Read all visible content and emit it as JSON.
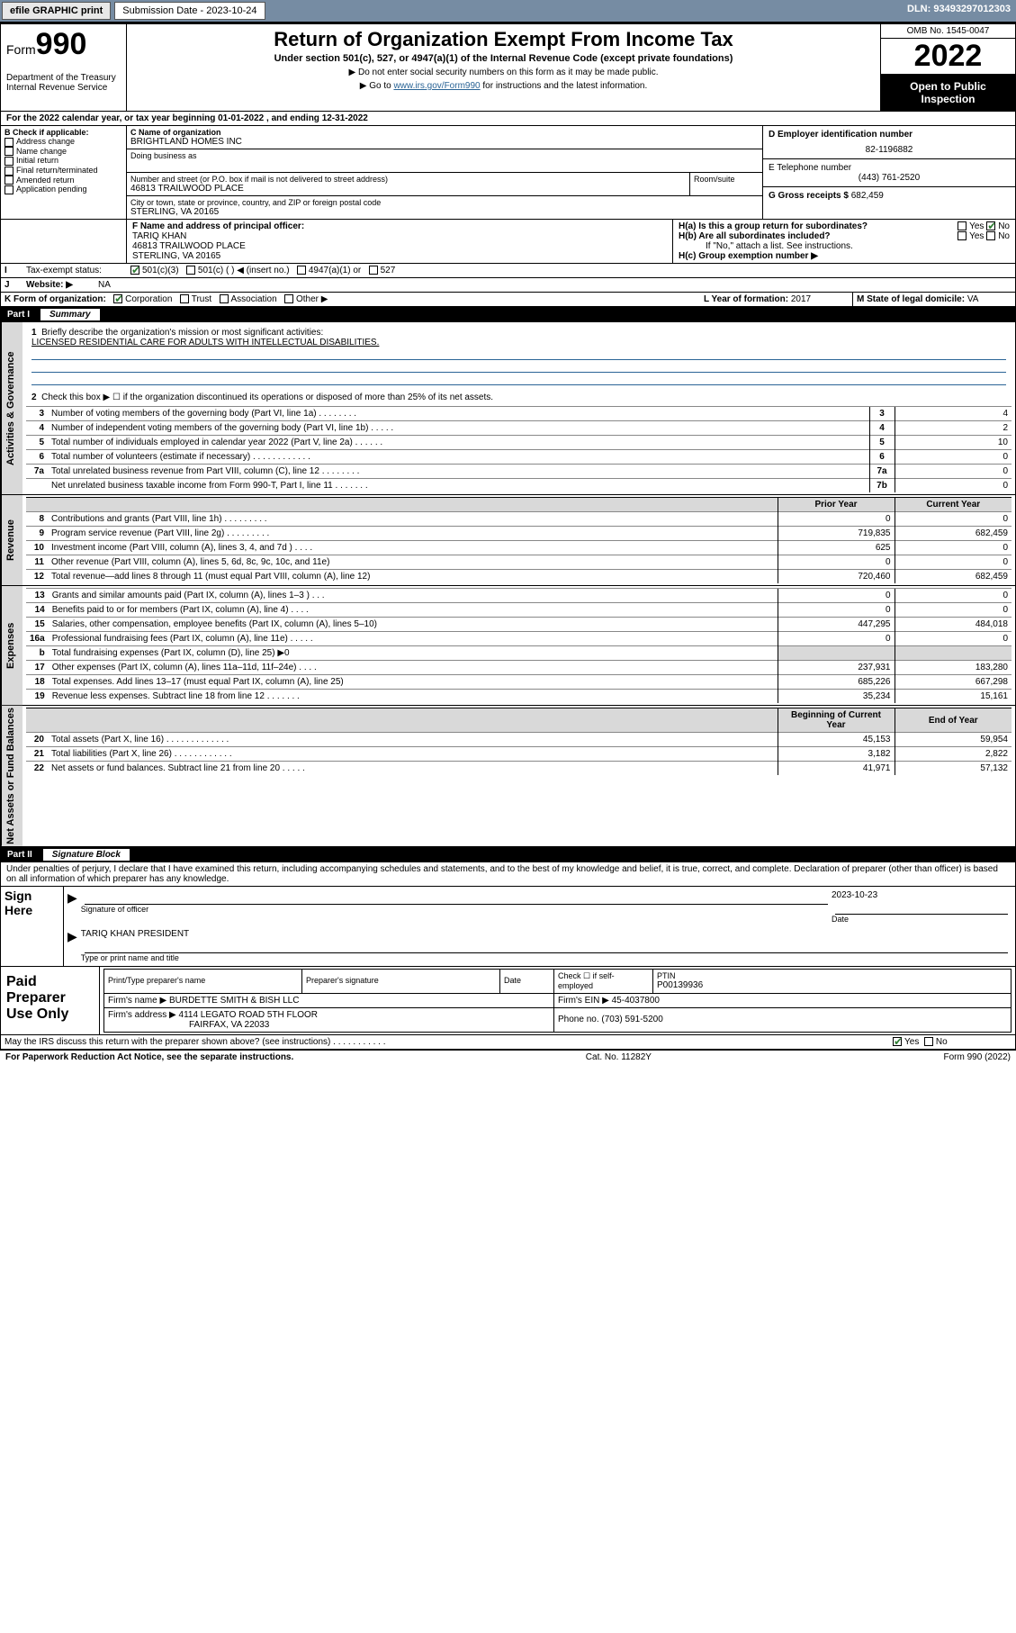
{
  "topbar": {
    "efile": "efile GRAPHIC print",
    "submission_label": "Submission Date - 2023-10-24",
    "dln": "DLN: 93493297012303"
  },
  "header": {
    "form_word": "Form",
    "form_num": "990",
    "title": "Return of Organization Exempt From Income Tax",
    "subtitle": "Under section 501(c), 527, or 4947(a)(1) of the Internal Revenue Code (except private foundations)",
    "note1": "▶ Do not enter social security numbers on this form as it may be made public.",
    "note2_pre": "▶ Go to ",
    "note2_link": "www.irs.gov/Form990",
    "note2_post": " for instructions and the latest information.",
    "dept": "Department of the Treasury\nInternal Revenue Service",
    "omb": "OMB No. 1545-0047",
    "year": "2022",
    "open": "Open to Public Inspection"
  },
  "period": "For the 2022 calendar year, or tax year beginning 01-01-2022   , and ending 12-31-2022",
  "B": {
    "title": "B Check if applicable:",
    "items": [
      "Address change",
      "Name change",
      "Initial return",
      "Final return/terminated",
      "Amended return",
      "Application pending"
    ]
  },
  "C": {
    "name_lbl": "C Name of organization",
    "name": "BRIGHTLAND HOMES INC",
    "dba_lbl": "Doing business as",
    "addr_lbl": "Number and street (or P.O. box if mail is not delivered to street address)",
    "room_lbl": "Room/suite",
    "addr": "46813 TRAILWOOD PLACE",
    "city_lbl": "City or town, state or province, country, and ZIP or foreign postal code",
    "city": "STERLING, VA  20165"
  },
  "D": {
    "lbl": "D Employer identification number",
    "val": "82-1196882"
  },
  "E": {
    "lbl": "E Telephone number",
    "val": "(443) 761-2520"
  },
  "G": {
    "lbl": "G Gross receipts $",
    "val": "682,459"
  },
  "F": {
    "lbl": "F  Name and address of principal officer:",
    "name": "TARIQ KHAN",
    "addr1": "46813 TRAILWOOD PLACE",
    "addr2": "STERLING, VA  20165"
  },
  "H": {
    "a": "H(a)  Is this a group return for subordinates?",
    "b": "H(b)  Are all subordinates included?",
    "note": "If \"No,\" attach a list. See instructions.",
    "c": "H(c)  Group exemption number ▶",
    "yes": "Yes",
    "no": "No"
  },
  "I": {
    "lbl": "Tax-exempt status:",
    "opts": [
      "501(c)(3)",
      "501(c) (  ) ◀ (insert no.)",
      "4947(a)(1) or",
      "527"
    ]
  },
  "J": {
    "lbl": "Website: ▶",
    "val": "NA"
  },
  "K": {
    "lbl": "K Form of organization:",
    "opts": [
      "Corporation",
      "Trust",
      "Association",
      "Other ▶"
    ]
  },
  "L": {
    "lbl": "L Year of formation: ",
    "val": "2017"
  },
  "M": {
    "lbl": "M State of legal domicile: ",
    "val": "VA"
  },
  "partI": {
    "name": "Part I",
    "title": "Summary"
  },
  "summary": {
    "l1_lbl": "Briefly describe the organization's mission or most significant activities:",
    "l1_val": "LICENSED RESIDENTIAL CARE FOR ADULTS WITH INTELLECTUAL DISABILITIES.",
    "l2": "Check this box ▶ ☐  if the organization discontinued its operations or disposed of more than 25% of its net assets.",
    "prior_hdr": "Prior Year",
    "curr_hdr": "Current Year",
    "begin_hdr": "Beginning of Current Year",
    "end_hdr": "End of Year",
    "rows_ag": [
      {
        "n": "3",
        "t": "Number of voting members of the governing body (Part VI, line 1a)  .   .   .   .   .   .   .   .",
        "box": "3",
        "v1": "",
        "v2": "4"
      },
      {
        "n": "4",
        "t": "Number of independent voting members of the governing body (Part VI, line 1b)  .   .   .   .   .",
        "box": "4",
        "v1": "",
        "v2": "2"
      },
      {
        "n": "5",
        "t": "Total number of individuals employed in calendar year 2022 (Part V, line 2a)  .   .   .   .   .   .",
        "box": "5",
        "v1": "",
        "v2": "10"
      },
      {
        "n": "6",
        "t": "Total number of volunteers (estimate if necessary)  .   .   .   .   .   .   .   .   .   .   .   .",
        "box": "6",
        "v1": "",
        "v2": "0"
      },
      {
        "n": "7a",
        "t": "Total unrelated business revenue from Part VIII, column (C), line 12  .   .   .   .   .   .   .   .",
        "box": "7a",
        "v1": "",
        "v2": "0"
      },
      {
        "n": "",
        "t": "Net unrelated business taxable income from Form 990-T, Part I, line 11  .   .   .   .   .   .   .",
        "box": "7b",
        "v1": "",
        "v2": "0"
      }
    ],
    "rows_rev": [
      {
        "n": "8",
        "t": "Contributions and grants (Part VIII, line 1h)   .   .   .   .   .   .   .   .   .",
        "v1": "0",
        "v2": "0"
      },
      {
        "n": "9",
        "t": "Program service revenue (Part VIII, line 2g)   .   .   .   .   .   .   .   .   .",
        "v1": "719,835",
        "v2": "682,459"
      },
      {
        "n": "10",
        "t": "Investment income (Part VIII, column (A), lines 3, 4, and 7d )   .   .   .   .",
        "v1": "625",
        "v2": "0"
      },
      {
        "n": "11",
        "t": "Other revenue (Part VIII, column (A), lines 5, 6d, 8c, 9c, 10c, and 11e)",
        "v1": "0",
        "v2": "0"
      },
      {
        "n": "12",
        "t": "Total revenue—add lines 8 through 11 (must equal Part VIII, column (A), line 12)",
        "v1": "720,460",
        "v2": "682,459"
      }
    ],
    "rows_exp": [
      {
        "n": "13",
        "t": "Grants and similar amounts paid (Part IX, column (A), lines 1–3 )   .   .   .",
        "v1": "0",
        "v2": "0"
      },
      {
        "n": "14",
        "t": "Benefits paid to or for members (Part IX, column (A), line 4)   .   .   .   .",
        "v1": "0",
        "v2": "0"
      },
      {
        "n": "15",
        "t": "Salaries, other compensation, employee benefits (Part IX, column (A), lines 5–10)",
        "v1": "447,295",
        "v2": "484,018"
      },
      {
        "n": "16a",
        "t": "Professional fundraising fees (Part IX, column (A), line 11e)   .   .   .   .   .",
        "v1": "0",
        "v2": "0"
      },
      {
        "n": "b",
        "t": "Total fundraising expenses (Part IX, column (D), line 25) ▶0",
        "v1": "",
        "v2": "",
        "shade": true
      },
      {
        "n": "17",
        "t": "Other expenses (Part IX, column (A), lines 11a–11d, 11f–24e)   .   .   .   .",
        "v1": "237,931",
        "v2": "183,280"
      },
      {
        "n": "18",
        "t": "Total expenses. Add lines 13–17 (must equal Part IX, column (A), line 25)",
        "v1": "685,226",
        "v2": "667,298"
      },
      {
        "n": "19",
        "t": "Revenue less expenses. Subtract line 18 from line 12   .   .   .   .   .   .   .",
        "v1": "35,234",
        "v2": "15,161"
      }
    ],
    "rows_na": [
      {
        "n": "20",
        "t": "Total assets (Part X, line 16)   .   .   .   .   .   .   .   .   .   .   .   .   .",
        "v1": "45,153",
        "v2": "59,954"
      },
      {
        "n": "21",
        "t": "Total liabilities (Part X, line 26)   .   .   .   .   .   .   .   .   .   .   .   .",
        "v1": "3,182",
        "v2": "2,822"
      },
      {
        "n": "22",
        "t": "Net assets or fund balances. Subtract line 21 from line 20   .   .   .   .   .",
        "v1": "41,971",
        "v2": "57,132"
      }
    ]
  },
  "partII": {
    "name": "Part II",
    "title": "Signature Block"
  },
  "sigdecl": "Under penalties of perjury, I declare that I have examined this return, including accompanying schedules and statements, and to the best of my knowledge and belief, it is true, correct, and complete. Declaration of preparer (other than officer) is based on all information of which preparer has any knowledge.",
  "sign": {
    "here": "Sign Here",
    "sig_lbl": "Signature of officer",
    "date_lbl": "Date",
    "date": "2023-10-23",
    "name": "TARIQ KHAN  PRESIDENT",
    "name_lbl": "Type or print name and title"
  },
  "prep": {
    "title": "Paid Preparer Use Only",
    "h1": "Print/Type preparer's name",
    "h2": "Preparer's signature",
    "h3": "Date",
    "h4a": "Check ☐ if self-employed",
    "h4b": "PTIN",
    "ptin": "P00139936",
    "firm_name_lbl": "Firm's name    ▶",
    "firm_name": "BURDETTE SMITH & BISH LLC",
    "firm_ein_lbl": "Firm's EIN ▶",
    "firm_ein": "45-4037800",
    "firm_addr_lbl": "Firm's address ▶",
    "firm_addr1": "4114 LEGATO ROAD 5TH FLOOR",
    "firm_addr2": "FAIRFAX, VA  22033",
    "phone_lbl": "Phone no.",
    "phone": "(703) 591-5200"
  },
  "discuss": "May the IRS discuss this return with the preparer shown above? (see instructions)   .   .   .   .   .   .   .   .   .   .   .",
  "footer": {
    "l": "For Paperwork Reduction Act Notice, see the separate instructions.",
    "m": "Cat. No. 11282Y",
    "r": "Form 990 (2022)"
  },
  "side": {
    "ag": "Activities & Governance",
    "rev": "Revenue",
    "exp": "Expenses",
    "na": "Net Assets or Fund Balances"
  },
  "colors": {
    "topbar": "#768ca3",
    "link": "#2a6496",
    "shade": "#d9d9d9"
  }
}
